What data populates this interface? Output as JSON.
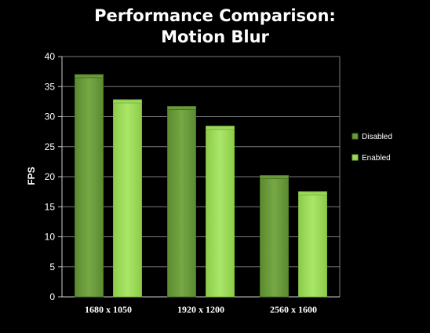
{
  "chart_data": {
    "type": "bar",
    "title_lines": [
      "Performance Comparison:",
      "Motion Blur"
    ],
    "ylabel": "FPS",
    "xlabel": "",
    "categories": [
      "1680 x 1050",
      "1920 x 1200",
      "2560 x 1600"
    ],
    "series": [
      {
        "name": "Disabled",
        "values": [
          37,
          31.7,
          20.2
        ],
        "color": "#6b9a3a",
        "edge": "#4c7326"
      },
      {
        "name": "Enabled",
        "values": [
          32.8,
          28.4,
          17.5
        ],
        "color": "#9ed95c",
        "edge": "#7cb640"
      }
    ],
    "ylim": [
      0,
      40
    ],
    "yticks": [
      "0",
      "5",
      "10",
      "15",
      "20",
      "25",
      "30",
      "35",
      "40"
    ],
    "grid": true,
    "legend_position": "right",
    "background": "#000000",
    "gridline_color": "#7a7a7a"
  }
}
